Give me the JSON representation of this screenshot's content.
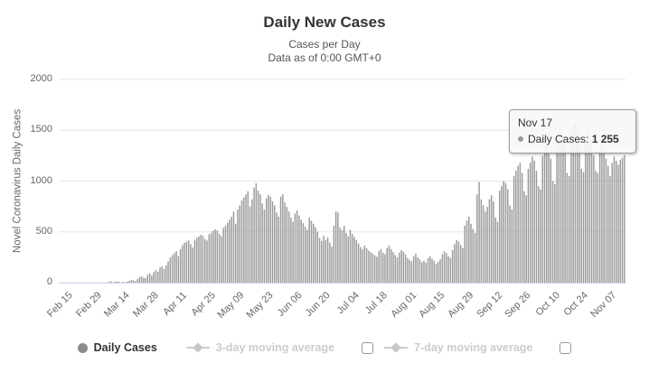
{
  "title": "Daily New Cases",
  "subtitle1": "Cases per Day",
  "subtitle2": "Data as of 0:00 GMT+0",
  "y_axis_title": "Novel Coronavirus Daily Cases",
  "tooltip": {
    "date": "Nov 17",
    "label": "Daily Cases: ",
    "value": "1 255"
  },
  "legend": [
    {
      "label": "Daily Cases",
      "active": true
    },
    {
      "label": "3-day moving average",
      "active": false
    },
    {
      "label": "7-day moving average",
      "active": false
    }
  ],
  "colors": {
    "bar": "#9a9a9a",
    "grid": "#e6e6e6",
    "axis_line": "#ccd6eb",
    "active_legend": "#333333",
    "hidden_legend": "#cccccc",
    "title": "#333333",
    "subtitle": "#555555",
    "axis_label": "#666666"
  },
  "chart_data": {
    "type": "bar",
    "title": "Daily New Cases",
    "subtitle": [
      "Cases per Day",
      "Data as of 0:00 GMT+0"
    ],
    "ylabel": "Novel Coronavirus Daily Cases",
    "xlabel": "",
    "ylim": [
      0,
      2000
    ],
    "y_ticks": [
      0,
      500,
      1000,
      1500,
      2000
    ],
    "x_ticks": [
      "Feb 15",
      "Feb 29",
      "Mar 14",
      "Mar 28",
      "Apr 11",
      "Apr 25",
      "May 09",
      "May 23",
      "Jun 06",
      "Jun 20",
      "Jul 04",
      "Jul 18",
      "Aug 01",
      "Aug 15",
      "Aug 29",
      "Sep 12",
      "Sep 26",
      "Oct 10",
      "Oct 24",
      "Nov 07"
    ],
    "x_tick_interval_days": 14,
    "start_label": "Feb 15",
    "end_label": "Nov 17",
    "grid": true,
    "legend_position": "bottom",
    "series_name": "Daily Cases",
    "hidden_series": [
      "3-day moving average",
      "7-day moving average"
    ],
    "highlight_point": {
      "date": "Nov 17",
      "value": 1255
    },
    "values": [
      0,
      0,
      0,
      0,
      0,
      0,
      0,
      0,
      0,
      0,
      0,
      0,
      0,
      0,
      0,
      0,
      0,
      0,
      0,
      0,
      0,
      0,
      0,
      0,
      5,
      15,
      0,
      10,
      12,
      8,
      0,
      5,
      0,
      12,
      18,
      28,
      22,
      15,
      35,
      55,
      62,
      48,
      45,
      78,
      92,
      70,
      105,
      125,
      108,
      148,
      160,
      135,
      170,
      210,
      245,
      270,
      290,
      310,
      260,
      330,
      370,
      392,
      405,
      415,
      380,
      345,
      420,
      440,
      455,
      470,
      460,
      430,
      415,
      475,
      490,
      510,
      525,
      515,
      480,
      455,
      540,
      560,
      590,
      620,
      650,
      700,
      580,
      720,
      760,
      810,
      840,
      870,
      900,
      750,
      820,
      935,
      978,
      905,
      870,
      780,
      720,
      830,
      865,
      845,
      800,
      760,
      690,
      650,
      845,
      870,
      790,
      745,
      700,
      640,
      600,
      680,
      710,
      660,
      620,
      585,
      550,
      520,
      640,
      610,
      580,
      545,
      500,
      440,
      410,
      460,
      420,
      445,
      395,
      355,
      560,
      700,
      690,
      540,
      515,
      560,
      490,
      455,
      520,
      480,
      450,
      420,
      385,
      350,
      330,
      365,
      340,
      315,
      300,
      285,
      270,
      255,
      310,
      330,
      295,
      280,
      340,
      365,
      330,
      300,
      270,
      250,
      295,
      320,
      305,
      280,
      240,
      225,
      210,
      260,
      285,
      250,
      230,
      200,
      215,
      195,
      240,
      260,
      235,
      215,
      185,
      205,
      230,
      280,
      310,
      290,
      260,
      245,
      320,
      380,
      420,
      405,
      370,
      340,
      560,
      610,
      650,
      580,
      530,
      490,
      870,
      990,
      820,
      760,
      700,
      745,
      820,
      860,
      800,
      640,
      600,
      905,
      950,
      1000,
      980,
      920,
      760,
      720,
      1050,
      1100,
      1150,
      1180,
      1080,
      900,
      860,
      1120,
      1180,
      1240,
      1200,
      1100,
      950,
      920,
      1250,
      1300,
      1350,
      1280,
      1220,
      1000,
      970,
      1380,
      1450,
      1500,
      1470,
      1350,
      1080,
      1050,
      1480,
      1540,
      1580,
      1520,
      1400,
      1120,
      1090,
      1450,
      1500,
      1460,
      1380,
      1250,
      1100,
      1080,
      1300,
      1350,
      1280,
      1220,
      1150,
      1050,
      1180,
      1240,
      1200,
      1160,
      1210,
      1230,
      1255
    ]
  }
}
